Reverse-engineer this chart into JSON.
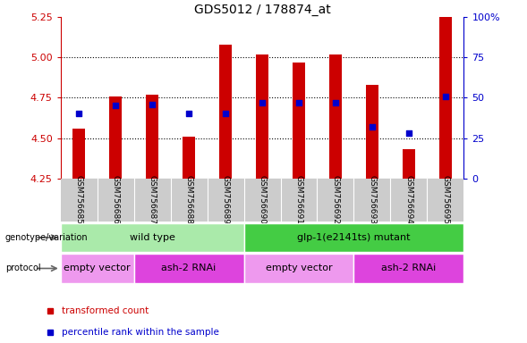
{
  "title": "GDS5012 / 178874_at",
  "samples": [
    "GSM756685",
    "GSM756686",
    "GSM756687",
    "GSM756688",
    "GSM756689",
    "GSM756690",
    "GSM756691",
    "GSM756692",
    "GSM756693",
    "GSM756694",
    "GSM756695"
  ],
  "bar_values": [
    4.56,
    4.76,
    4.77,
    4.51,
    5.08,
    5.02,
    4.97,
    5.02,
    4.83,
    4.43,
    5.25
  ],
  "percentile_values": [
    40,
    45,
    46,
    40,
    40,
    47,
    47,
    47,
    32,
    28,
    51
  ],
  "ylim_left": [
    4.25,
    5.25
  ],
  "ylim_right": [
    0,
    100
  ],
  "yticks_left": [
    4.25,
    4.5,
    4.75,
    5.0,
    5.25
  ],
  "yticks_right": [
    0,
    25,
    50,
    75,
    100
  ],
  "ytick_labels_right": [
    "0",
    "25",
    "50",
    "75",
    "100%"
  ],
  "bar_color": "#cc0000",
  "dot_color": "#0000cc",
  "bar_bottom": 4.25,
  "sample_label_bg": "#cccccc",
  "genotype_groups": [
    {
      "label": "wild type",
      "start": 0,
      "end": 5,
      "color": "#aaeaaa"
    },
    {
      "label": "glp-1(e2141ts) mutant",
      "start": 5,
      "end": 11,
      "color": "#44cc44"
    }
  ],
  "protocol_groups": [
    {
      "label": "empty vector",
      "start": 0,
      "end": 2,
      "color": "#ee99ee"
    },
    {
      "label": "ash-2 RNAi",
      "start": 2,
      "end": 5,
      "color": "#dd44dd"
    },
    {
      "label": "empty vector",
      "start": 5,
      "end": 8,
      "color": "#ee99ee"
    },
    {
      "label": "ash-2 RNAi",
      "start": 8,
      "end": 11,
      "color": "#dd44dd"
    }
  ],
  "legend_items": [
    {
      "label": "transformed count",
      "color": "#cc0000",
      "marker": "s"
    },
    {
      "label": "percentile rank within the sample",
      "color": "#0000cc",
      "marker": "s"
    }
  ],
  "tick_color_left": "#cc0000",
  "tick_color_right": "#0000cc",
  "grid_linestyle": ":",
  "grid_color": "black",
  "grid_linewidth": 0.8,
  "grid_yticks": [
    4.5,
    4.75,
    5.0
  ]
}
